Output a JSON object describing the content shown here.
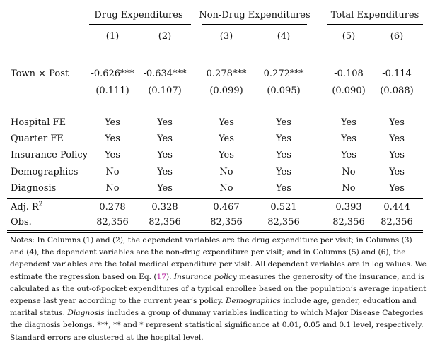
{
  "header": {
    "groups": [
      "Drug Expenditures",
      "Non-Drug Expenditures",
      "Total Expenditures"
    ],
    "columns": [
      "(1)",
      "(2)",
      "(3)",
      "(4)",
      "(5)",
      "(6)"
    ]
  },
  "main_row": {
    "label": "Town × Post",
    "coefs": [
      "-0.626***",
      "-0.634***",
      "0.278***",
      "0.272***",
      "-0.108",
      "-0.114"
    ],
    "ses": [
      "(0.111)",
      "(0.107)",
      "(0.099)",
      "(0.095)",
      "(0.090)",
      "(0.088)"
    ]
  },
  "controls": [
    {
      "label": "Hospital FE",
      "values": [
        "Yes",
        "Yes",
        "Yes",
        "Yes",
        "Yes",
        "Yes"
      ]
    },
    {
      "label": "Quarter FE",
      "values": [
        "Yes",
        "Yes",
        "Yes",
        "Yes",
        "Yes",
        "Yes"
      ]
    },
    {
      "label": "Insurance Policy",
      "values": [
        "Yes",
        "Yes",
        "Yes",
        "Yes",
        "Yes",
        "Yes"
      ]
    },
    {
      "label": "Demographics",
      "values": [
        "No",
        "Yes",
        "No",
        "Yes",
        "No",
        "Yes"
      ]
    },
    {
      "label": "Diagnosis",
      "values": [
        "No",
        "Yes",
        "No",
        "Yes",
        "No",
        "Yes"
      ]
    }
  ],
  "stats": [
    {
      "label": "Adj. R",
      "sup": "2",
      "values": [
        "0.278",
        "0.328",
        "0.467",
        "0.521",
        "0.393",
        "0.444"
      ]
    },
    {
      "label": "Obs.",
      "values": [
        "82,356",
        "82,356",
        "82,356",
        "82,356",
        "82,356",
        "82,356"
      ]
    }
  ],
  "notes": {
    "l1": "Notes: In Columns (1) and (2), the dependent variables are the drug expenditure per visit; in Columns (3)",
    "l2": "and (4), the dependent variables are the non-drug expenditure per visit; and in Columns (5) and (6), the",
    "l3": "dependent variables are the total medical expenditure per visit.  All dependent variables are in log values.  We",
    "l4a": "estimate the regression based on Eq. (",
    "l4ref": "17",
    "l4b": "). ",
    "l4it": "Insurance policy",
    "l4c": " measures the generosity of the insurance, and is",
    "l5": "calculated as the out-of-pocket expenditures of a typical enrollee based on the population’s average inpatient",
    "l6": "expense last year according to the current year’s policy.",
    "l6it": "Demographics",
    "l6b": " include age, gender, education and",
    "l7": "marital status.",
    "l7it": "Diagnosis",
    "l7b": " includes a group of dummy variables indicating to which Major Disease Categories",
    "l8": "the diagnosis belongs.  ***, ** and * represent statistical significance at 0.01, 0.05 and 0.1 level, respectively.",
    "l9": "Standard errors are clustered at the hospital level."
  }
}
